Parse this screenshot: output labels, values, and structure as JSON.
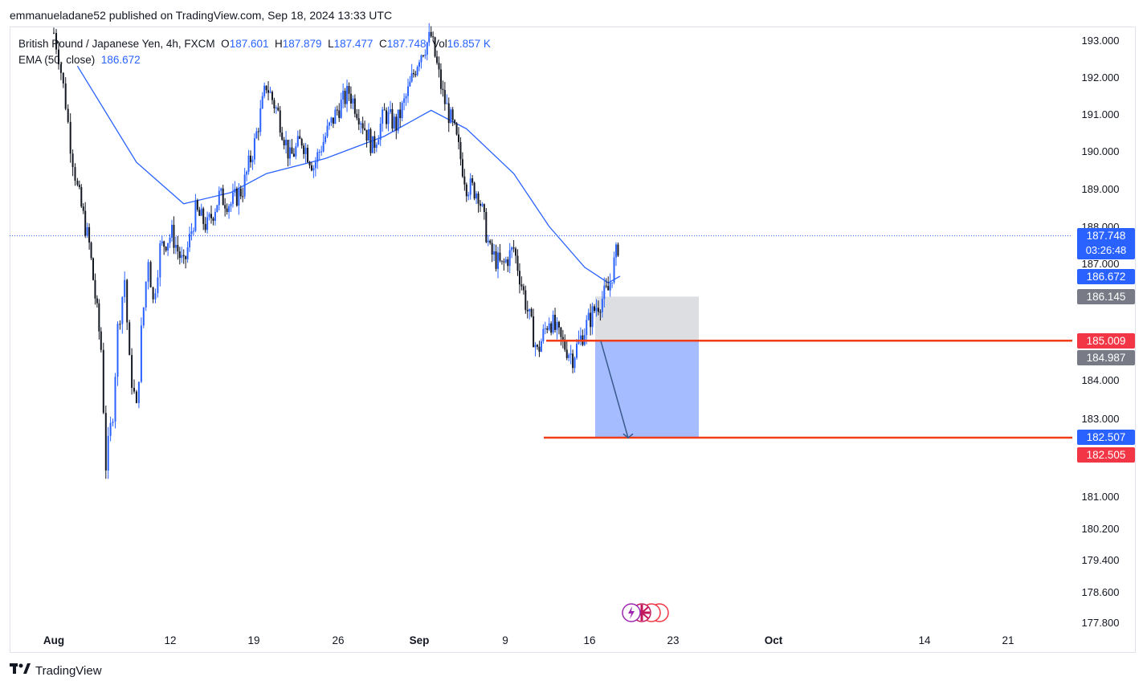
{
  "header": {
    "published": "emmanueladane52 published on TradingView.com, Sep 18, 2024 13:33 UTC"
  },
  "legend": {
    "symbol": "British Pound / Japanese Yen, 4h, FXCM",
    "o_label": "O",
    "o_value": "187.601",
    "h_label": "H",
    "h_value": "187.879",
    "l_label": "L",
    "l_value": "187.477",
    "c_label": "C",
    "c_value": "187.748",
    "vol_label": "Vol",
    "vol_value": "16.857 K",
    "ema_label": "EMA (50, close)",
    "ema_value": "186.672"
  },
  "price_tags": {
    "last_price": "187.748",
    "countdown": "03:26:48",
    "ema": "186.672",
    "gray_top": "186.145",
    "entry_line": "185.009",
    "entry_box": "184.987",
    "target_box": "182.507",
    "target_line": "182.505"
  },
  "footer": {
    "brand": "TradingView"
  },
  "colors": {
    "up": "#2962ff",
    "down": "#131722",
    "ema": "#2962ff",
    "line_red": "#f23c16",
    "tag_red": "#f23645",
    "tag_blue": "#2962ff",
    "tag_gray": "#787b86",
    "zone_gray": "#b2b5be",
    "zone_blue": "#2962ff"
  },
  "chart_data": {
    "type": "candlestick",
    "symbol": "GBPJPY",
    "timeframe": "4h",
    "y_axis": {
      "ticks": [
        "193.000",
        "192.000",
        "191.000",
        "190.000",
        "189.000",
        "188.000",
        "187.000",
        "184.000",
        "183.000",
        "181.000",
        "180.200",
        "179.400",
        "178.600",
        "177.800"
      ]
    },
    "x_axis": {
      "ticks": [
        "Aug",
        "12",
        "19",
        "26",
        "Sep",
        "9",
        "16",
        "23",
        "Oct",
        "14",
        "21"
      ]
    },
    "price_path": [
      [
        "Aug 1",
        193.2
      ],
      [
        "Aug 1",
        192.6
      ],
      [
        "Aug 2",
        191.3
      ],
      [
        "Aug 2",
        190.2
      ],
      [
        "Aug 3",
        189.0
      ],
      [
        "Aug 4",
        187.5
      ],
      [
        "Aug 5",
        184.8
      ],
      [
        "Aug 5",
        181.8
      ],
      [
        "Aug 6",
        183.2
      ],
      [
        "Aug 6",
        185.3
      ],
      [
        "Aug 7",
        186.6
      ],
      [
        "Aug 7",
        184.4
      ],
      [
        "Aug 8",
        183.2
      ],
      [
        "Aug 8",
        185.2
      ],
      [
        "Aug 9",
        187.2
      ],
      [
        "Aug 9",
        186.0
      ],
      [
        "Aug 10",
        187.4
      ],
      [
        "Aug 11",
        187.8
      ],
      [
        "Aug 12",
        186.9
      ],
      [
        "Aug 13",
        188.4
      ],
      [
        "Aug 14",
        188.0
      ],
      [
        "Aug 15",
        188.8
      ],
      [
        "Aug 16",
        188.6
      ],
      [
        "Aug 17",
        189.0
      ],
      [
        "Aug 18",
        190.2
      ],
      [
        "Aug 19",
        191.8
      ],
      [
        "Aug 20",
        191.0
      ],
      [
        "Aug 21",
        189.8
      ],
      [
        "Aug 22",
        190.3
      ],
      [
        "Aug 23",
        189.6
      ],
      [
        "Aug 24",
        190.4
      ],
      [
        "Aug 25",
        191.1
      ],
      [
        "Aug 26",
        191.6
      ],
      [
        "Aug 27",
        190.9
      ],
      [
        "Aug 28",
        190.1
      ],
      [
        "Aug 29",
        191.0
      ],
      [
        "Aug 30",
        190.7
      ],
      [
        "Aug 31",
        191.6
      ],
      [
        "Sep 1",
        192.6
      ],
      [
        "Sep 2",
        193.1
      ],
      [
        "Sep 3",
        191.5
      ],
      [
        "Sep 4",
        190.5
      ],
      [
        "Sep 5",
        189.1
      ],
      [
        "Sep 6",
        188.9
      ],
      [
        "Sep 7",
        187.3
      ],
      [
        "Sep 8",
        186.9
      ],
      [
        "Sep 9",
        187.4
      ],
      [
        "Sep 10",
        186.0
      ],
      [
        "Sep 11",
        184.7
      ],
      [
        "Sep 12",
        185.6
      ],
      [
        "Sep 13",
        185.0
      ],
      [
        "Sep 14",
        184.6
      ],
      [
        "Sep 15",
        185.3
      ],
      [
        "Sep 16",
        185.9
      ],
      [
        "Sep 17",
        186.3
      ],
      [
        "Sep 18",
        187.7
      ]
    ],
    "series": [
      {
        "name": "EMA (50, close)",
        "values": [
          [
            "Aug 3",
            192.3
          ],
          [
            "Aug 8",
            189.7
          ],
          [
            "Aug 12",
            188.6
          ],
          [
            "Aug 16",
            188.9
          ],
          [
            "Aug 19",
            189.4
          ],
          [
            "Aug 24",
            189.8
          ],
          [
            "Aug 29",
            190.4
          ],
          [
            "Sep 2",
            191.1
          ],
          [
            "Sep 5",
            190.6
          ],
          [
            "Sep 9",
            189.4
          ],
          [
            "Sep 12",
            188.0
          ],
          [
            "Sep 15",
            186.9
          ],
          [
            "Sep 17",
            186.5
          ],
          [
            "Sep 18",
            186.67
          ]
        ]
      }
    ],
    "annotations": [
      {
        "type": "horizontal_line",
        "price": 185.009,
        "color": "red"
      },
      {
        "type": "horizontal_line",
        "price": 182.505,
        "color": "red"
      },
      {
        "type": "short_position",
        "stop": 186.145,
        "entry": 184.987,
        "target": 182.507
      },
      {
        "type": "arrow",
        "from": 185.0,
        "to": 182.5
      }
    ],
    "last_price": 187.748
  }
}
